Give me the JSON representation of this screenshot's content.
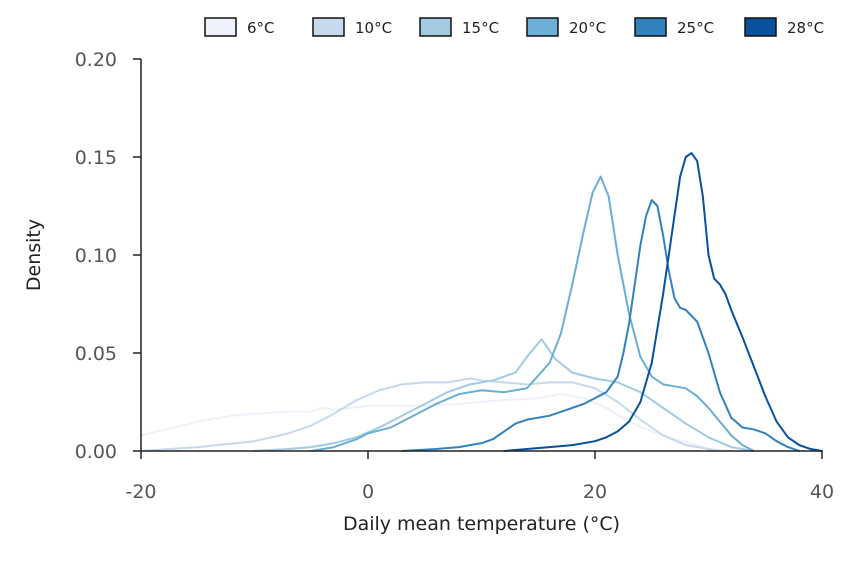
{
  "chart_data": {
    "type": "line",
    "title": "",
    "xlabel": "Daily mean temperature (°C)",
    "ylabel": "Density",
    "xlim": [
      -20,
      40
    ],
    "ylim": [
      0,
      0.2
    ],
    "x_ticks": [
      -20,
      0,
      20,
      40
    ],
    "x_tick_labels": [
      "-20",
      "0",
      "20",
      "40"
    ],
    "y_ticks": [
      0,
      0.05,
      0.1,
      0.15,
      0.2
    ],
    "y_tick_labels": [
      "0.00",
      "0.05",
      "0.10",
      "0.15",
      "0.20"
    ],
    "grid": false,
    "legend_position": "top",
    "series": [
      {
        "name": "6°C",
        "color": "#eef0fa",
        "x": [
          -20,
          -17,
          -15,
          -12,
          -10,
          -7,
          -5,
          -4,
          -3,
          0,
          3,
          5,
          8,
          10,
          12,
          15,
          17,
          19,
          21,
          23,
          25,
          27,
          29,
          30,
          32
        ],
        "y": [
          0.008,
          0.012,
          0.015,
          0.018,
          0.019,
          0.02,
          0.02,
          0.022,
          0.021,
          0.023,
          0.023,
          0.023,
          0.024,
          0.025,
          0.026,
          0.027,
          0.029,
          0.027,
          0.022,
          0.015,
          0.01,
          0.006,
          0.003,
          0.001,
          0
        ]
      },
      {
        "name": "10°C",
        "color": "#c7d9ed",
        "x": [
          -20,
          -15,
          -10,
          -7,
          -5,
          -3,
          -1,
          1,
          3,
          5,
          7,
          9,
          10,
          12,
          14,
          16,
          18,
          20,
          22,
          24,
          26,
          28,
          30,
          31
        ],
        "y": [
          0,
          0.002,
          0.005,
          0.009,
          0.013,
          0.019,
          0.026,
          0.031,
          0.034,
          0.035,
          0.035,
          0.037,
          0.036,
          0.035,
          0.034,
          0.035,
          0.035,
          0.032,
          0.025,
          0.016,
          0.008,
          0.003,
          0.001,
          0
        ]
      },
      {
        "name": "15°C",
        "color": "#a2cbe2",
        "x": [
          -10,
          -7,
          -5,
          -3,
          -1,
          1,
          3,
          5,
          7,
          9,
          11,
          13,
          14,
          15.3,
          16.5,
          18,
          20,
          22,
          24,
          26,
          28,
          30,
          32,
          34
        ],
        "y": [
          0,
          0.001,
          0.002,
          0.004,
          0.007,
          0.012,
          0.018,
          0.024,
          0.03,
          0.034,
          0.036,
          0.04,
          0.048,
          0.057,
          0.047,
          0.04,
          0.037,
          0.035,
          0.03,
          0.022,
          0.014,
          0.007,
          0.002,
          0
        ]
      },
      {
        "name": "20°C",
        "color": "#6baed6",
        "x": [
          -5,
          -3,
          -1,
          0,
          2,
          4,
          6,
          8,
          10,
          12,
          14,
          16,
          17,
          18,
          19,
          19.8,
          20.5,
          21.2,
          22,
          23,
          24,
          25,
          26,
          27,
          28,
          29,
          30,
          31,
          32,
          33,
          34
        ],
        "y": [
          0,
          0.002,
          0.006,
          0.009,
          0.012,
          0.018,
          0.024,
          0.029,
          0.031,
          0.03,
          0.032,
          0.045,
          0.06,
          0.085,
          0.112,
          0.132,
          0.14,
          0.13,
          0.1,
          0.07,
          0.048,
          0.038,
          0.034,
          0.033,
          0.032,
          0.028,
          0.022,
          0.015,
          0.008,
          0.003,
          0
        ]
      },
      {
        "name": "25°C",
        "color": "#3182bd",
        "x": [
          3,
          6,
          8,
          10,
          11,
          12,
          13,
          14,
          15,
          16,
          17,
          18,
          19,
          20,
          21,
          22,
          22.5,
          23,
          23.5,
          24,
          24.5,
          25,
          25.5,
          26,
          26.5,
          27,
          27.5,
          28,
          29,
          30,
          31,
          32,
          33,
          34,
          35,
          36,
          37,
          38
        ],
        "y": [
          0,
          0.001,
          0.002,
          0.004,
          0.006,
          0.01,
          0.014,
          0.016,
          0.017,
          0.018,
          0.02,
          0.022,
          0.024,
          0.027,
          0.03,
          0.038,
          0.05,
          0.065,
          0.085,
          0.105,
          0.12,
          0.128,
          0.125,
          0.11,
          0.092,
          0.078,
          0.073,
          0.072,
          0.066,
          0.05,
          0.03,
          0.017,
          0.012,
          0.011,
          0.009,
          0.005,
          0.002,
          0
        ]
      },
      {
        "name": "28°C",
        "color": "#08519c",
        "x": [
          12,
          14,
          16,
          18,
          20,
          21,
          22,
          23,
          24,
          25,
          26,
          27,
          27.5,
          28,
          28.5,
          29,
          29.5,
          30,
          30.5,
          31,
          31.5,
          32,
          33,
          34,
          35,
          36,
          37,
          38,
          39,
          40
        ],
        "y": [
          0,
          0.001,
          0.002,
          0.003,
          0.005,
          0.007,
          0.01,
          0.015,
          0.025,
          0.045,
          0.08,
          0.12,
          0.14,
          0.15,
          0.152,
          0.148,
          0.13,
          0.1,
          0.088,
          0.085,
          0.08,
          0.072,
          0.058,
          0.043,
          0.028,
          0.015,
          0.007,
          0.003,
          0.001,
          0
        ]
      }
    ]
  }
}
